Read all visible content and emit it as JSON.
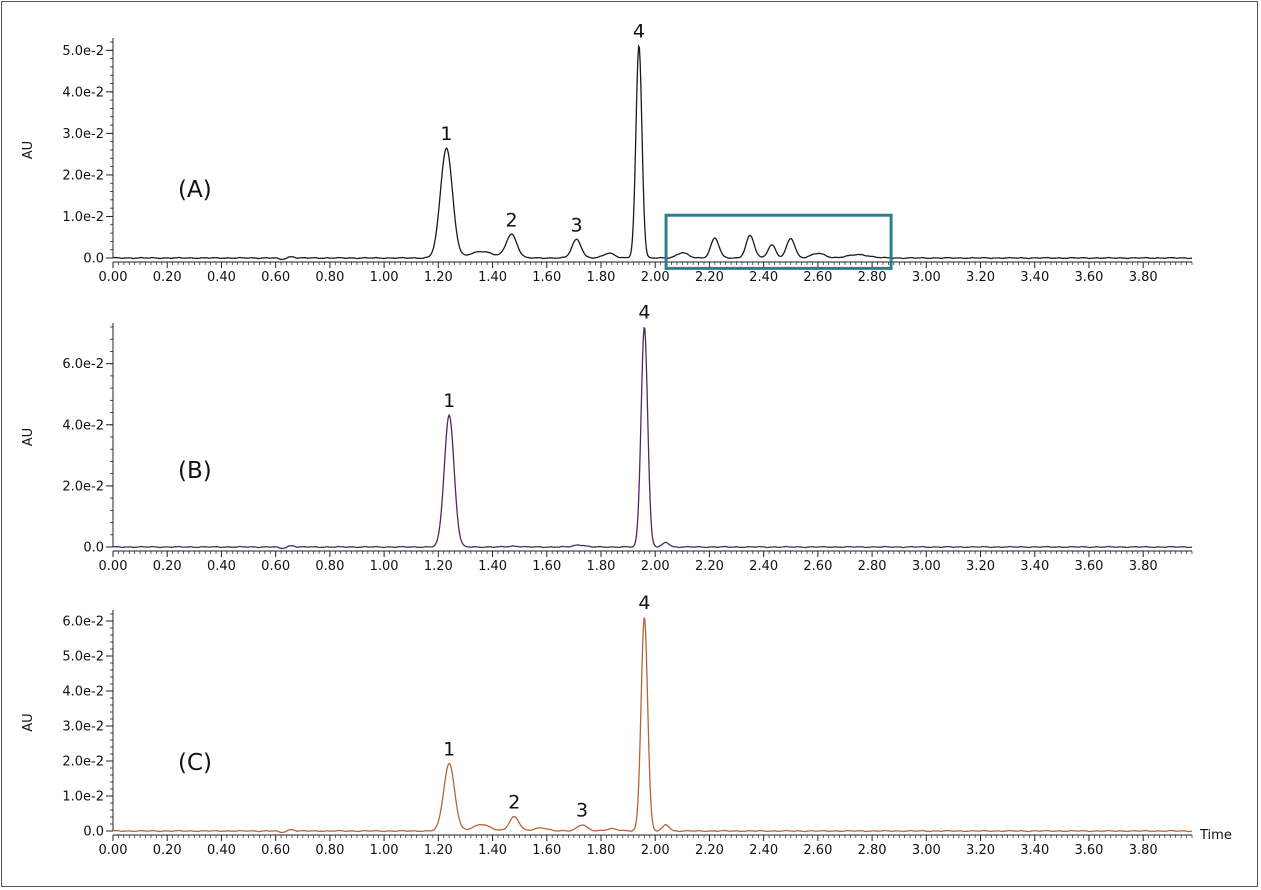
{
  "chart_data": [
    {
      "type": "line",
      "panel_label": "(A)",
      "ylabel": "AU",
      "xlabel": "",
      "xlim": [
        0.0,
        3.98
      ],
      "ylim": [
        0.0,
        0.052
      ],
      "x_ticks": [
        "0.00",
        "0.20",
        "0.40",
        "0.60",
        "0.80",
        "1.00",
        "1.20",
        "1.40",
        "1.60",
        "1.80",
        "2.00",
        "2.20",
        "2.40",
        "2.60",
        "2.80",
        "3.00",
        "3.20",
        "3.40",
        "3.60",
        "3.80"
      ],
      "y_ticks": [
        {
          "value": 0.0,
          "label": "0.0"
        },
        {
          "value": 0.01,
          "label": "1.0e-2"
        },
        {
          "value": 0.02,
          "label": "2.0e-2"
        },
        {
          "value": 0.03,
          "label": "3.0e-2"
        },
        {
          "value": 0.04,
          "label": "4.0e-2"
        },
        {
          "value": 0.05,
          "label": "5.0e-2"
        }
      ],
      "line_color": "#1a1a1a",
      "peaks": [
        {
          "x": 1.23,
          "y": 0.0265,
          "width": 0.022
        },
        {
          "x": 1.36,
          "y": 0.0016,
          "width": 0.04
        },
        {
          "x": 1.47,
          "y": 0.0057,
          "width": 0.02
        },
        {
          "x": 1.71,
          "y": 0.0045,
          "width": 0.017
        },
        {
          "x": 1.83,
          "y": 0.0012,
          "width": 0.02
        },
        {
          "x": 1.94,
          "y": 0.0512,
          "width": 0.011
        },
        {
          "x": 2.1,
          "y": 0.0013,
          "width": 0.02
        },
        {
          "x": 2.22,
          "y": 0.0048,
          "width": 0.015
        },
        {
          "x": 2.35,
          "y": 0.0054,
          "width": 0.015
        },
        {
          "x": 2.43,
          "y": 0.0032,
          "width": 0.014
        },
        {
          "x": 2.5,
          "y": 0.0047,
          "width": 0.015
        },
        {
          "x": 2.6,
          "y": 0.0011,
          "width": 0.025
        },
        {
          "x": 2.75,
          "y": 0.0008,
          "width": 0.04
        }
      ],
      "peak_labels": [
        {
          "text": "1",
          "x": 1.23,
          "y": 0.0265
        },
        {
          "text": "2",
          "x": 1.47,
          "y": 0.0057
        },
        {
          "text": "3",
          "x": 1.71,
          "y": 0.0045
        },
        {
          "text": "4",
          "x": 1.94,
          "y": 0.0512
        }
      ],
      "highlight_box": {
        "x0": 2.04,
        "x1": 2.87,
        "y0": -0.0025,
        "y1": 0.0103,
        "color": "#2e7d8c"
      }
    },
    {
      "type": "line",
      "panel_label": "(B)",
      "ylabel": "AU",
      "xlabel": "",
      "xlim": [
        0.0,
        3.98
      ],
      "ylim": [
        0.0,
        0.072
      ],
      "x_ticks": [
        "0.00",
        "0.20",
        "0.40",
        "0.60",
        "0.80",
        "1.00",
        "1.20",
        "1.40",
        "1.60",
        "1.80",
        "2.00",
        "2.20",
        "2.40",
        "2.60",
        "2.80",
        "3.00",
        "3.20",
        "3.40",
        "3.60",
        "3.80"
      ],
      "y_ticks": [
        {
          "value": 0.0,
          "label": "0.0"
        },
        {
          "value": 0.02,
          "label": "2.0e-2"
        },
        {
          "value": 0.04,
          "label": "4.0e-2"
        },
        {
          "value": 0.06,
          "label": "6.0e-2"
        }
      ],
      "line_color": "#4b2a63",
      "peaks": [
        {
          "x": 1.24,
          "y": 0.0432,
          "width": 0.018
        },
        {
          "x": 1.48,
          "y": 0.0003,
          "width": 0.02
        },
        {
          "x": 1.72,
          "y": 0.0007,
          "width": 0.02
        },
        {
          "x": 1.96,
          "y": 0.0722,
          "width": 0.012
        },
        {
          "x": 2.04,
          "y": 0.0015,
          "width": 0.012
        }
      ],
      "peak_labels": [
        {
          "text": "1",
          "x": 1.24,
          "y": 0.0432
        },
        {
          "text": "4",
          "x": 1.96,
          "y": 0.0722
        }
      ]
    },
    {
      "type": "line",
      "panel_label": "(C)",
      "ylabel": "AU",
      "xlabel": "Time",
      "xlim": [
        0.0,
        3.98
      ],
      "ylim": [
        0.0,
        0.062
      ],
      "x_ticks": [
        "0.00",
        "0.20",
        "0.40",
        "0.60",
        "0.80",
        "1.00",
        "1.20",
        "1.40",
        "1.60",
        "1.80",
        "2.00",
        "2.20",
        "2.40",
        "2.60",
        "2.80",
        "3.00",
        "3.20",
        "3.40",
        "3.60",
        "3.80"
      ],
      "y_ticks": [
        {
          "value": 0.0,
          "label": "0.0"
        },
        {
          "value": 0.01,
          "label": "1.0e-2"
        },
        {
          "value": 0.02,
          "label": "2.0e-2"
        },
        {
          "value": 0.03,
          "label": "3.0e-2"
        },
        {
          "value": 0.04,
          "label": "4.0e-2"
        },
        {
          "value": 0.05,
          "label": "5.0e-2"
        },
        {
          "value": 0.06,
          "label": "6.0e-2"
        }
      ],
      "line_color": "#b5653a",
      "peaks": [
        {
          "x": 1.24,
          "y": 0.0193,
          "width": 0.02
        },
        {
          "x": 1.36,
          "y": 0.0019,
          "width": 0.03
        },
        {
          "x": 1.48,
          "y": 0.0041,
          "width": 0.018
        },
        {
          "x": 1.58,
          "y": 0.0009,
          "width": 0.025
        },
        {
          "x": 1.73,
          "y": 0.0018,
          "width": 0.018
        },
        {
          "x": 1.84,
          "y": 0.0007,
          "width": 0.02
        },
        {
          "x": 1.96,
          "y": 0.0612,
          "width": 0.012
        },
        {
          "x": 2.04,
          "y": 0.0018,
          "width": 0.012
        }
      ],
      "peak_labels": [
        {
          "text": "1",
          "x": 1.24,
          "y": 0.0193
        },
        {
          "text": "2",
          "x": 1.48,
          "y": 0.0041
        },
        {
          "text": "3",
          "x": 1.73,
          "y": 0.0018
        },
        {
          "text": "4",
          "x": 1.96,
          "y": 0.0612
        }
      ]
    }
  ]
}
